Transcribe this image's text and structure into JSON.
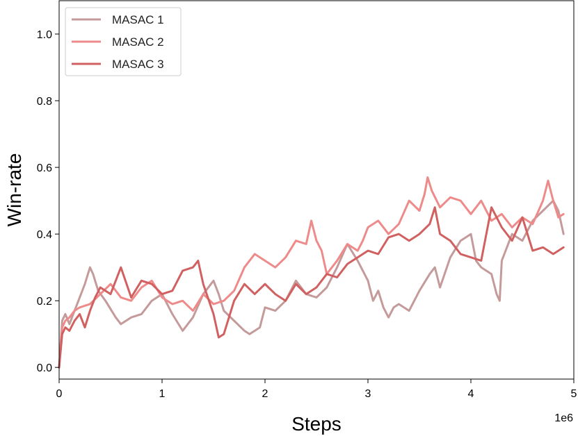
{
  "chart_data": {
    "type": "line",
    "xlabel": "Steps",
    "ylabel": "Win-rate",
    "x_scale_label": "1e6",
    "xlim": [
      0,
      5
    ],
    "ylim": [
      -0.035,
      1.1
    ],
    "xticks": [
      0,
      1,
      2,
      3,
      4,
      5
    ],
    "xtick_labels": [
      "0",
      "1",
      "2",
      "3",
      "4",
      "5"
    ],
    "yticks": [
      0.0,
      0.2,
      0.4,
      0.6,
      0.8,
      1.0
    ],
    "ytick_labels": [
      "0.0",
      "0.2",
      "0.4",
      "0.6",
      "0.8",
      "1.0"
    ],
    "grid": false,
    "legend_position": "top-left",
    "series": [
      {
        "name": "MASAC 1",
        "color": "#c49a9a",
        "x": [
          0,
          0.03,
          0.06,
          0.1,
          0.15,
          0.2,
          0.25,
          0.3,
          0.33,
          0.38,
          0.45,
          0.55,
          0.6,
          0.7,
          0.8,
          0.9,
          1.0,
          1.1,
          1.2,
          1.3,
          1.4,
          1.5,
          1.55,
          1.6,
          1.7,
          1.8,
          1.85,
          1.95,
          2.0,
          2.1,
          2.2,
          2.3,
          2.4,
          2.5,
          2.6,
          2.7,
          2.8,
          2.9,
          3.0,
          3.05,
          3.1,
          3.15,
          3.2,
          3.25,
          3.3,
          3.4,
          3.5,
          3.6,
          3.65,
          3.7,
          3.8,
          3.9,
          4.0,
          4.05,
          4.1,
          4.2,
          4.25,
          4.28,
          4.3,
          4.4,
          4.5,
          4.6,
          4.7,
          4.8,
          4.85,
          4.9
        ],
        "y": [
          0.0,
          0.14,
          0.16,
          0.13,
          0.17,
          0.21,
          0.25,
          0.3,
          0.28,
          0.23,
          0.2,
          0.15,
          0.13,
          0.15,
          0.16,
          0.2,
          0.22,
          0.16,
          0.11,
          0.15,
          0.22,
          0.26,
          0.22,
          0.17,
          0.14,
          0.11,
          0.1,
          0.12,
          0.18,
          0.17,
          0.2,
          0.26,
          0.22,
          0.21,
          0.24,
          0.3,
          0.37,
          0.32,
          0.26,
          0.2,
          0.23,
          0.18,
          0.15,
          0.18,
          0.19,
          0.17,
          0.23,
          0.28,
          0.3,
          0.24,
          0.33,
          0.38,
          0.4,
          0.32,
          0.3,
          0.28,
          0.22,
          0.2,
          0.32,
          0.4,
          0.38,
          0.44,
          0.47,
          0.5,
          0.47,
          0.4
        ]
      },
      {
        "name": "MASAC 2",
        "color": "#ef8a8a",
        "x": [
          0,
          0.03,
          0.06,
          0.1,
          0.15,
          0.2,
          0.3,
          0.4,
          0.5,
          0.6,
          0.7,
          0.8,
          0.9,
          1.0,
          1.1,
          1.2,
          1.3,
          1.4,
          1.5,
          1.6,
          1.7,
          1.8,
          1.9,
          2.0,
          2.1,
          2.2,
          2.3,
          2.4,
          2.45,
          2.5,
          2.55,
          2.6,
          2.7,
          2.8,
          2.9,
          2.95,
          3.0,
          3.1,
          3.2,
          3.3,
          3.4,
          3.5,
          3.55,
          3.58,
          3.62,
          3.7,
          3.8,
          3.9,
          4.0,
          4.1,
          4.2,
          4.3,
          4.4,
          4.5,
          4.6,
          4.7,
          4.75,
          4.8,
          4.85,
          4.9
        ],
        "y": [
          0.0,
          0.12,
          0.14,
          0.15,
          0.17,
          0.18,
          0.19,
          0.22,
          0.25,
          0.21,
          0.2,
          0.24,
          0.26,
          0.21,
          0.19,
          0.2,
          0.17,
          0.22,
          0.19,
          0.2,
          0.23,
          0.3,
          0.34,
          0.32,
          0.3,
          0.33,
          0.38,
          0.37,
          0.44,
          0.38,
          0.35,
          0.28,
          0.32,
          0.37,
          0.35,
          0.38,
          0.42,
          0.44,
          0.4,
          0.43,
          0.5,
          0.47,
          0.52,
          0.57,
          0.53,
          0.48,
          0.51,
          0.5,
          0.46,
          0.5,
          0.44,
          0.46,
          0.42,
          0.45,
          0.43,
          0.5,
          0.56,
          0.5,
          0.45,
          0.46
        ]
      },
      {
        "name": "MASAC 3",
        "color": "#d16060",
        "x": [
          0,
          0.03,
          0.06,
          0.1,
          0.15,
          0.2,
          0.25,
          0.3,
          0.35,
          0.4,
          0.5,
          0.6,
          0.7,
          0.8,
          0.9,
          1.0,
          1.1,
          1.2,
          1.3,
          1.35,
          1.4,
          1.5,
          1.55,
          1.6,
          1.7,
          1.8,
          1.9,
          2.0,
          2.1,
          2.2,
          2.3,
          2.4,
          2.5,
          2.6,
          2.7,
          2.8,
          2.9,
          3.0,
          3.1,
          3.2,
          3.3,
          3.4,
          3.5,
          3.6,
          3.65,
          3.7,
          3.8,
          3.9,
          4.0,
          4.1,
          4.2,
          4.3,
          4.4,
          4.5,
          4.6,
          4.7,
          4.8,
          4.85,
          4.9
        ],
        "y": [
          0.0,
          0.1,
          0.12,
          0.11,
          0.14,
          0.16,
          0.12,
          0.17,
          0.21,
          0.24,
          0.22,
          0.3,
          0.21,
          0.26,
          0.25,
          0.22,
          0.23,
          0.29,
          0.3,
          0.32,
          0.25,
          0.16,
          0.09,
          0.1,
          0.2,
          0.25,
          0.22,
          0.25,
          0.22,
          0.2,
          0.25,
          0.22,
          0.24,
          0.28,
          0.27,
          0.31,
          0.33,
          0.35,
          0.34,
          0.39,
          0.4,
          0.38,
          0.4,
          0.43,
          0.48,
          0.4,
          0.38,
          0.34,
          0.33,
          0.32,
          0.48,
          0.42,
          0.38,
          0.45,
          0.35,
          0.36,
          0.34,
          0.35,
          0.36
        ]
      }
    ]
  }
}
